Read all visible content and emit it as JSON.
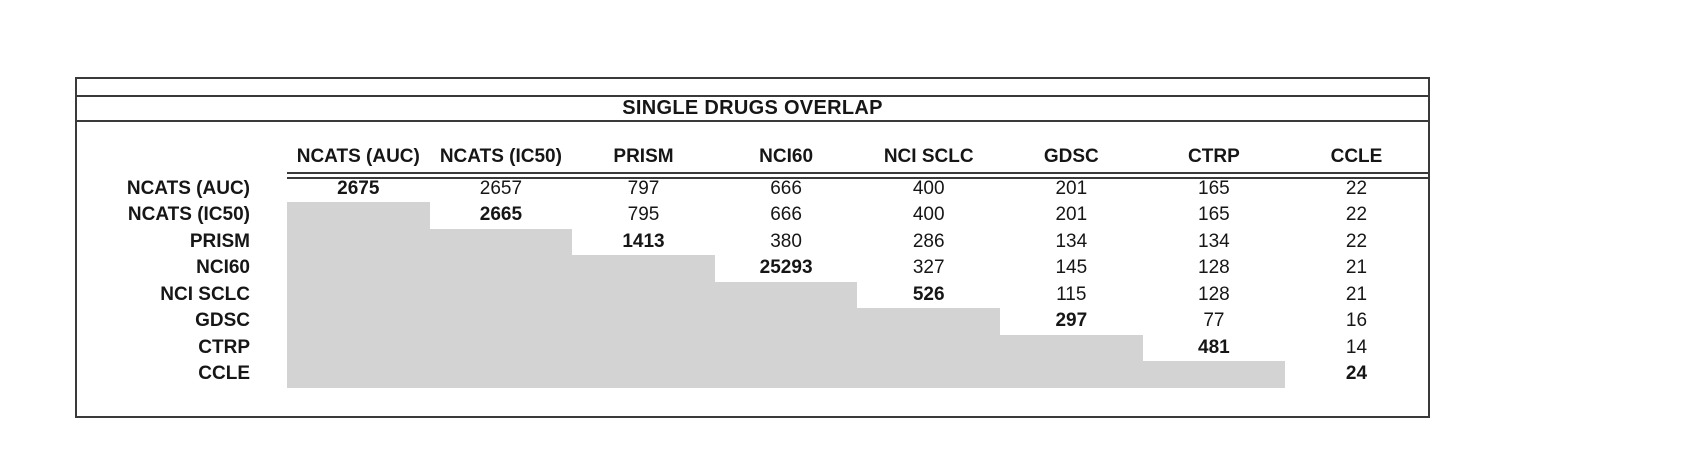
{
  "title": "SINGLE DRUGS OVERLAP",
  "table": {
    "columns": [
      "NCATS (AUC)",
      "NCATS (IC50)",
      "PRISM",
      "NCI60",
      "NCI SCLC",
      "GDSC",
      "CTRP",
      "CCLE"
    ],
    "rows": [
      {
        "label": "NCATS (AUC)",
        "values": [
          2675,
          2657,
          797,
          666,
          400,
          201,
          165,
          22
        ]
      },
      {
        "label": "NCATS (IC50)",
        "values": [
          null,
          2665,
          795,
          666,
          400,
          201,
          165,
          22
        ]
      },
      {
        "label": "PRISM",
        "values": [
          null,
          null,
          1413,
          380,
          286,
          134,
          134,
          22
        ]
      },
      {
        "label": "NCI60",
        "values": [
          null,
          null,
          null,
          25293,
          327,
          145,
          128,
          21
        ]
      },
      {
        "label": "NCI SCLC",
        "values": [
          null,
          null,
          null,
          null,
          526,
          115,
          128,
          21
        ]
      },
      {
        "label": "GDSC",
        "values": [
          null,
          null,
          null,
          null,
          null,
          297,
          77,
          16
        ]
      },
      {
        "label": "CTRP",
        "values": [
          null,
          null,
          null,
          null,
          null,
          null,
          481,
          14
        ]
      },
      {
        "label": "CCLE",
        "values": [
          null,
          null,
          null,
          null,
          null,
          null,
          null,
          24
        ]
      }
    ]
  },
  "chart_data": {
    "type": "table",
    "title": "SINGLE DRUGS OVERLAP",
    "columns": [
      "NCATS (AUC)",
      "NCATS (IC50)",
      "PRISM",
      "NCI60",
      "NCI SCLC",
      "GDSC",
      "CTRP",
      "CCLE"
    ],
    "row_labels": [
      "NCATS (AUC)",
      "NCATS (IC50)",
      "PRISM",
      "NCI60",
      "NCI SCLC",
      "GDSC",
      "CTRP",
      "CCLE"
    ],
    "matrix": [
      [
        2675,
        2657,
        797,
        666,
        400,
        201,
        165,
        22
      ],
      [
        null,
        2665,
        795,
        666,
        400,
        201,
        165,
        22
      ],
      [
        null,
        null,
        1413,
        380,
        286,
        134,
        134,
        22
      ],
      [
        null,
        null,
        null,
        25293,
        327,
        145,
        128,
        21
      ],
      [
        null,
        null,
        null,
        null,
        526,
        115,
        128,
        21
      ],
      [
        null,
        null,
        null,
        null,
        null,
        297,
        77,
        16
      ],
      [
        null,
        null,
        null,
        null,
        null,
        null,
        481,
        14
      ],
      [
        null,
        null,
        null,
        null,
        null,
        null,
        null,
        24
      ]
    ],
    "diagonal_values": [
      2675,
      2665,
      1413,
      25293,
      526,
      297,
      481,
      24
    ],
    "style_notes": {
      "diagonal_bold": true,
      "lower_triangle": "shaded gray, no values",
      "upper_triangle": "pairwise overlap counts"
    }
  },
  "colors": {
    "background": "#ffffff",
    "text": "#161616",
    "border": "#3a3a3a",
    "shade": "#d3d3d3"
  }
}
